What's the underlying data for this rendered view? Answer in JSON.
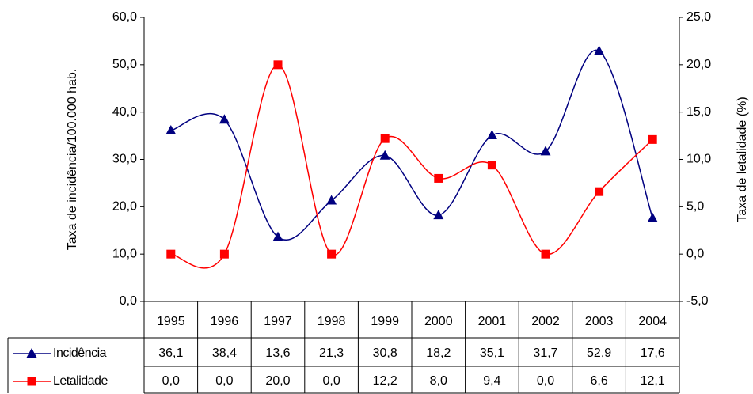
{
  "chart_data": {
    "type": "line",
    "categories": [
      "1995",
      "1996",
      "1997",
      "1998",
      "1999",
      "2000",
      "2001",
      "2002",
      "2003",
      "2004"
    ],
    "y_label": "Taxa de incidência/100.000 hab.",
    "y2_label": "Taxa de letalidade (%)",
    "series": [
      {
        "name": "Incidência",
        "color": "#000080",
        "marker": "triangle",
        "values": [
          36.1,
          38.4,
          13.6,
          21.3,
          30.8,
          18.2,
          35.1,
          31.7,
          52.9,
          17.6
        ],
        "value_labels": [
          "36,1",
          "38,4",
          "13,6",
          "21,3",
          "30,8",
          "18,2",
          "35,1",
          "31,7",
          "52,9",
          "17,6"
        ]
      },
      {
        "name": "Letalidade",
        "color": "#ff0000",
        "marker": "square",
        "axis": "y2",
        "values": [
          0.0,
          0.0,
          20.0,
          0.0,
          12.2,
          8.0,
          9.4,
          0.0,
          6.6,
          12.1
        ],
        "value_labels": [
          "0,0",
          "0,0",
          "20,0",
          "0,0",
          "12,2",
          "8,0",
          "9,4",
          "0,0",
          "6,6",
          "12,1"
        ]
      }
    ],
    "ylim": [
      0,
      60
    ],
    "yticks": [
      {
        "value": 0,
        "label": "0,0"
      },
      {
        "value": 10,
        "label": "10,0"
      },
      {
        "value": 20,
        "label": "20,0"
      },
      {
        "value": 30,
        "label": "30,0"
      },
      {
        "value": 40,
        "label": "40,0"
      },
      {
        "value": 50,
        "label": "50,0"
      },
      {
        "value": 60,
        "label": "60,0"
      }
    ],
    "y2lim": [
      -5,
      25
    ],
    "y2ticks": [
      {
        "value": -5,
        "label": "-5,0"
      },
      {
        "value": 0,
        "label": "0,0"
      },
      {
        "value": 5,
        "label": "5,0"
      },
      {
        "value": 10,
        "label": "10,0"
      },
      {
        "value": 15,
        "label": "15,0"
      },
      {
        "value": 20,
        "label": "20,0"
      },
      {
        "value": 25,
        "label": "25,0"
      }
    ],
    "smooth": true
  }
}
